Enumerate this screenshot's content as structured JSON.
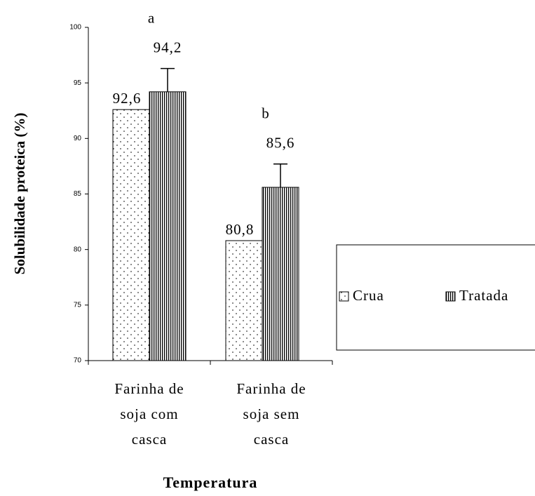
{
  "chart_data": {
    "type": "bar",
    "y_label": "Solubilidade proteica (%)",
    "x_label": "Temperatura",
    "categories": [
      [
        "Farinha de",
        "soja com",
        "casca"
      ],
      [
        "Farinha de",
        "soja sem",
        "casca"
      ]
    ],
    "series": [
      {
        "name": "Crua",
        "color": "#000000",
        "pattern": "dots",
        "values": [
          92.6,
          80.8
        ],
        "value_labels": [
          "92,6",
          "80,8"
        ]
      },
      {
        "name": "Tratada",
        "color": "#000000",
        "pattern": "vertical-lines",
        "values": [
          94.2,
          85.6
        ],
        "value_labels": [
          "94,2",
          "85,6"
        ],
        "errors": [
          2.1,
          2.1
        ]
      }
    ],
    "annotations": [
      "a",
      "b"
    ],
    "ylim": [
      70,
      100
    ],
    "yticks": [
      70,
      75,
      80,
      85,
      90,
      95,
      100
    ],
    "grid": false,
    "legend": "right"
  }
}
